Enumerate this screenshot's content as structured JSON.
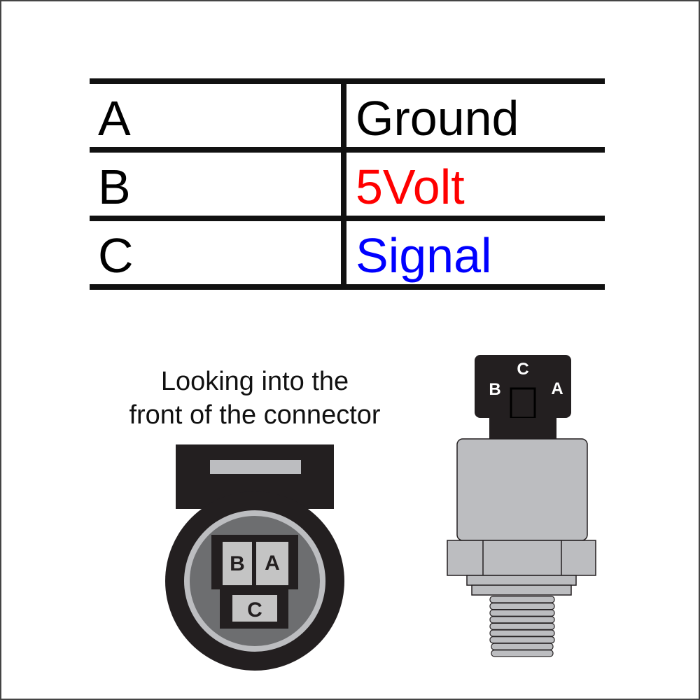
{
  "pinout": {
    "rows": [
      {
        "pin": "A",
        "function": "Ground",
        "color": "#000000"
      },
      {
        "pin": "B",
        "function": "5Volt",
        "color": "#ff0000"
      },
      {
        "pin": "C",
        "function": "Signal",
        "color": "#0000ff"
      }
    ]
  },
  "front_view": {
    "caption_line1": "Looking into the",
    "caption_line2": "front of the connector",
    "pins": {
      "b": "B",
      "a": "A",
      "c": "C"
    }
  },
  "sensor": {
    "pins": {
      "c": "C",
      "b": "B",
      "a": "A"
    }
  },
  "colors": {
    "connector_dark": "#231f20",
    "body_gray": "#bcbdc0",
    "pin_gray": "#c4c4c4"
  }
}
